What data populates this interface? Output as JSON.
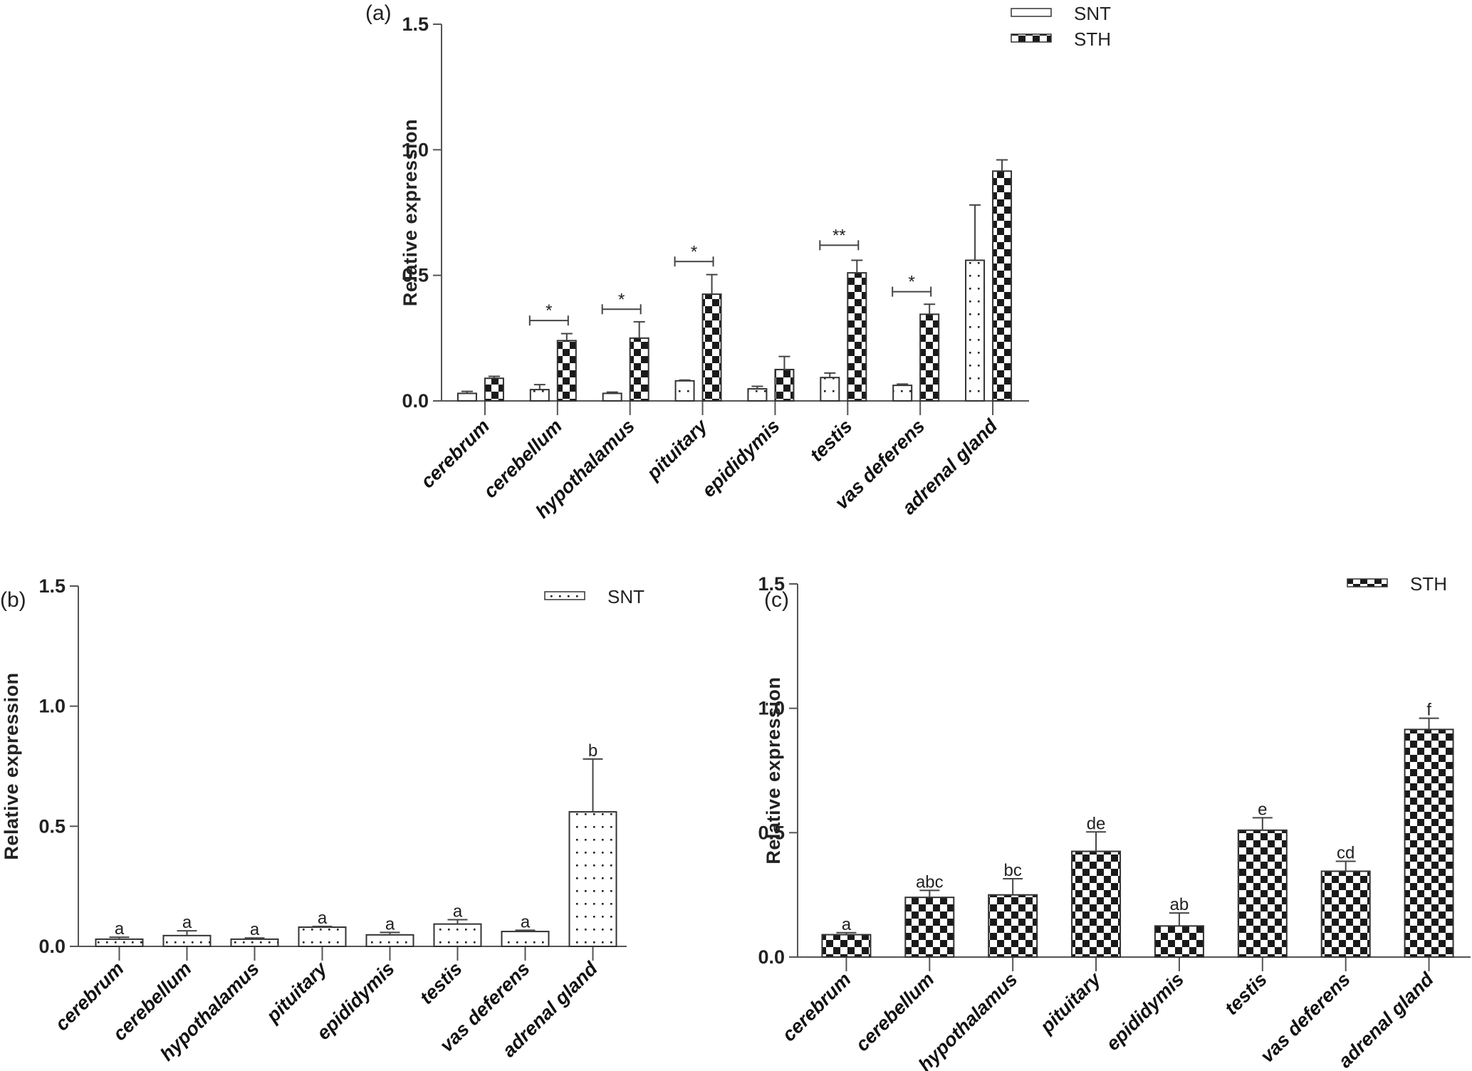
{
  "chart_data": [
    {
      "panel": "(a)",
      "type": "bar",
      "title": "",
      "xlabel": "",
      "ylabel": "Relative expression",
      "ylim": [
        0,
        1.5
      ],
      "yticks": [
        "0.0",
        "0.5",
        "1.0",
        "1.5"
      ],
      "ytick_values": [
        0,
        0.5,
        1.0,
        1.5
      ],
      "grid": false,
      "legend_position": "top-right",
      "categories": [
        "cerebrum",
        "cerebellum",
        "hypothalamus",
        "pituitary",
        "epididymis",
        "testis",
        "vas deferens",
        "adrenal gland"
      ],
      "series": [
        {
          "name": "SNT",
          "pattern": "dots",
          "values": [
            0.03,
            0.045,
            0.03,
            0.08,
            0.048,
            0.093,
            0.062,
            0.56
          ],
          "errors": [
            0.008,
            0.02,
            0.005,
            0.003,
            0.01,
            0.018,
            0.005,
            0.22
          ]
        },
        {
          "name": "STH",
          "pattern": "checker",
          "values": [
            0.09,
            0.24,
            0.25,
            0.425,
            0.125,
            0.51,
            0.345,
            0.915
          ],
          "errors": [
            0.008,
            0.028,
            0.065,
            0.078,
            0.052,
            0.05,
            0.04,
            0.045
          ]
        }
      ],
      "significance": [
        {
          "category": "cerebellum",
          "mark": "*",
          "y": 0.32
        },
        {
          "category": "hypothalamus",
          "mark": "*",
          "y": 0.365
        },
        {
          "category": "pituitary",
          "mark": "*",
          "y": 0.555
        },
        {
          "category": "testis",
          "mark": "**",
          "y": 0.62
        },
        {
          "category": "vas deferens",
          "mark": "*",
          "y": 0.435
        }
      ]
    },
    {
      "panel": "(b)",
      "type": "bar",
      "title": "",
      "xlabel": "",
      "ylabel": "Relative expression",
      "ylim": [
        0,
        1.5
      ],
      "yticks": [
        "0.0",
        "0.5",
        "1.0",
        "1.5"
      ],
      "ytick_values": [
        0,
        0.5,
        1.0,
        1.5
      ],
      "grid": false,
      "legend_position": "top-right",
      "categories": [
        "cerebrum",
        "cerebellum",
        "hypothalamus",
        "pituitary",
        "epididymis",
        "testis",
        "vas deferens",
        "adrenal gland"
      ],
      "series": [
        {
          "name": "SNT",
          "pattern": "dots",
          "values": [
            0.03,
            0.045,
            0.03,
            0.08,
            0.048,
            0.093,
            0.062,
            0.56
          ],
          "errors": [
            0.008,
            0.02,
            0.005,
            0.003,
            0.01,
            0.018,
            0.005,
            0.22
          ]
        }
      ],
      "letters": [
        "a",
        "a",
        "a",
        "a",
        "a",
        "a",
        "a",
        "b"
      ]
    },
    {
      "panel": "(c)",
      "type": "bar",
      "title": "",
      "xlabel": "",
      "ylabel": "Relative expression",
      "ylim": [
        0,
        1.5
      ],
      "yticks": [
        "0.0",
        "0.5",
        "1.0",
        "1.5"
      ],
      "ytick_values": [
        0,
        0.5,
        1.0,
        1.5
      ],
      "grid": false,
      "legend_position": "top-right",
      "categories": [
        "cerebrum",
        "cerebellum",
        "hypothalamus",
        "pituitary",
        "epididymis",
        "testis",
        "vas deferens",
        "adrenal gland"
      ],
      "series": [
        {
          "name": "STH",
          "pattern": "checker",
          "values": [
            0.09,
            0.24,
            0.25,
            0.425,
            0.125,
            0.51,
            0.345,
            0.915
          ],
          "errors": [
            0.008,
            0.028,
            0.065,
            0.078,
            0.052,
            0.05,
            0.04,
            0.045
          ]
        }
      ],
      "letters": [
        "a",
        "abc",
        "bc",
        "de",
        "ab",
        "e",
        "cd",
        "f"
      ]
    }
  ]
}
